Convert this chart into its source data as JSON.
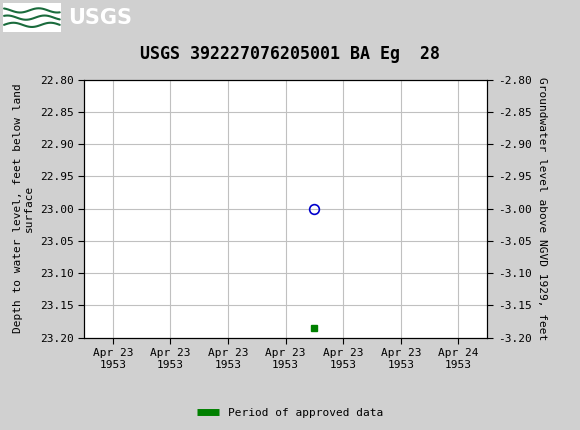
{
  "title": "USGS 392227076205001 BA Eg  28",
  "header_bg_color": "#1a6b3c",
  "plot_bg_color": "#ffffff",
  "outer_bg_color": "#d0d0d0",
  "grid_color": "#c0c0c0",
  "left_ylabel": "Depth to water level, feet below land\nsurface",
  "right_ylabel": "Groundwater level above NGVD 1929, feet",
  "ylim_left": [
    22.8,
    23.2
  ],
  "ylim_right": [
    -2.8,
    -3.2
  ],
  "yticks_left": [
    22.8,
    22.85,
    22.9,
    22.95,
    23.0,
    23.05,
    23.1,
    23.15,
    23.2
  ],
  "yticks_right": [
    -2.8,
    -2.85,
    -2.9,
    -2.95,
    -3.0,
    -3.05,
    -3.1,
    -3.15,
    -3.2
  ],
  "data_point_x": 3.5,
  "data_point_y": 23.0,
  "data_point_color": "#0000cc",
  "data_point_marker": "o",
  "data_point_markersize": 7,
  "green_point_x": 3.5,
  "green_point_y": 23.185,
  "green_point_color": "#008000",
  "green_point_marker": "s",
  "green_point_markersize": 4,
  "xtick_labels": [
    "Apr 23\n1953",
    "Apr 23\n1953",
    "Apr 23\n1953",
    "Apr 23\n1953",
    "Apr 23\n1953",
    "Apr 23\n1953",
    "Apr 24\n1953"
  ],
  "xtick_positions": [
    0,
    1,
    2,
    3,
    4,
    5,
    6
  ],
  "legend_label": "Period of approved data",
  "legend_color": "#008000",
  "font_family": "monospace",
  "title_fontsize": 12,
  "tick_fontsize": 8,
  "label_fontsize": 8
}
